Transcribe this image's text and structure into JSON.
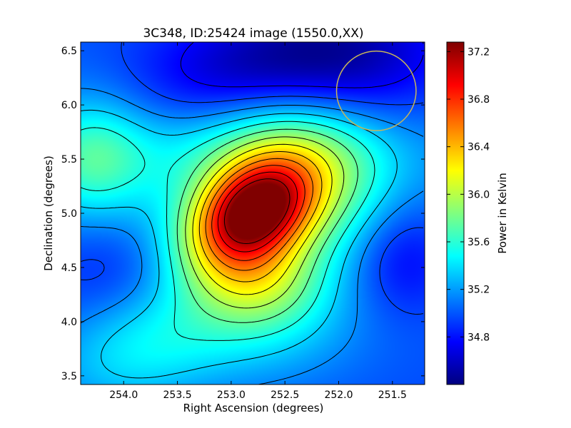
{
  "chart_data": {
    "type": "heatmap",
    "title": "3C348, ID:25424 image (1550.0,XX)",
    "xlabel": "Right Ascension (degrees)",
    "ylabel": "Declination (degrees)",
    "xlim": [
      254.4,
      251.2
    ],
    "ylim": [
      3.42,
      6.58
    ],
    "x_ticks": [
      {
        "value": 254.0,
        "label": "254.0"
      },
      {
        "value": 253.5,
        "label": "253.5"
      },
      {
        "value": 253.0,
        "label": "253.0"
      },
      {
        "value": 252.5,
        "label": "252.5"
      },
      {
        "value": 252.0,
        "label": "252.0"
      },
      {
        "value": 251.5,
        "label": "251.5"
      }
    ],
    "y_ticks": [
      {
        "value": 3.5,
        "label": "3.5"
      },
      {
        "value": 4.0,
        "label": "4.0"
      },
      {
        "value": 4.5,
        "label": "4.5"
      },
      {
        "value": 5.0,
        "label": "5.0"
      },
      {
        "value": 5.5,
        "label": "5.5"
      },
      {
        "value": 6.0,
        "label": "6.0"
      },
      {
        "value": 6.5,
        "label": "6.5"
      }
    ],
    "colorbar": {
      "label": "Power in Kelvin",
      "colormap": "jet",
      "vmin": 34.4,
      "vmax": 37.28,
      "ticks": [
        {
          "value": 34.8,
          "label": "34.8"
        },
        {
          "value": 35.2,
          "label": "35.2"
        },
        {
          "value": 35.6,
          "label": "35.6"
        },
        {
          "value": 36.0,
          "label": "36.0"
        },
        {
          "value": 36.4,
          "label": "36.4"
        },
        {
          "value": 36.8,
          "label": "36.8"
        },
        {
          "value": 37.2,
          "label": "37.2"
        }
      ]
    },
    "peak": {
      "ra": 252.78,
      "dec": 5.04,
      "value": 37.25
    },
    "overlay_circle": {
      "ra": 251.65,
      "dec": 6.13,
      "radius_deg": 0.37,
      "color": "#c8b65a"
    },
    "contour_color": "#000000"
  }
}
